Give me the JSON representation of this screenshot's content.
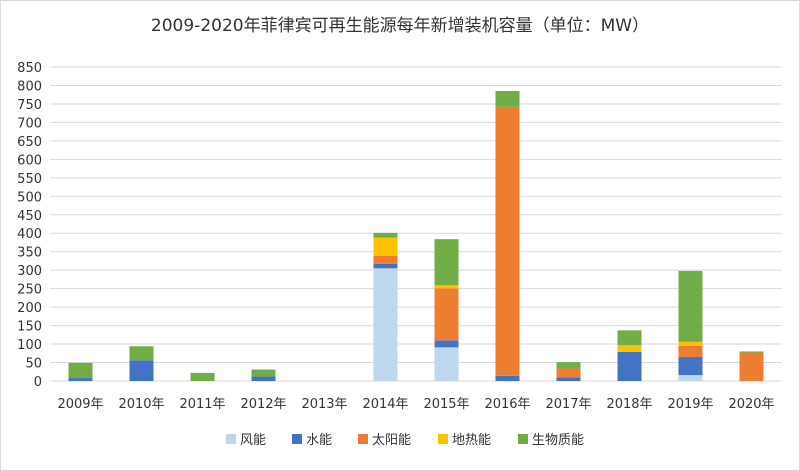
{
  "chart_data": {
    "type": "bar",
    "stacked": true,
    "title": "2009-2020年菲律宾可再生能源每年新增装机容量（单位：MW）",
    "xlabel": "",
    "ylabel": "",
    "ylim": [
      0,
      850
    ],
    "yticks": [
      "0",
      "50",
      "100",
      "150",
      "200",
      "250",
      "300",
      "350",
      "400",
      "450",
      "500",
      "550",
      "600",
      "650",
      "700",
      "750",
      "800",
      "850"
    ],
    "grid": true,
    "legend_position": "bottom",
    "categories": [
      "2009年",
      "2010年",
      "2011年",
      "2012年",
      "2013年",
      "2014年",
      "2015年",
      "2016年",
      "2017年",
      "2018年",
      "2019年",
      "2020年"
    ],
    "series": [
      {
        "name": "风能",
        "color": "#bdd7ee",
        "values": [
          0,
          0,
          0,
          0,
          0,
          305,
          91,
          0,
          0,
          0,
          16,
          0
        ]
      },
      {
        "name": "水能",
        "color": "#4472c4",
        "values": [
          8,
          56,
          0,
          12,
          0,
          12,
          19,
          14,
          10,
          79,
          49,
          0
        ]
      },
      {
        "name": "太阳能",
        "color": "#ed7d31",
        "values": [
          0,
          0,
          0,
          0,
          0,
          22,
          141,
          728,
          24,
          0,
          30,
          77
        ]
      },
      {
        "name": "地热能",
        "color": "#ffc000",
        "values": [
          0,
          0,
          0,
          0,
          0,
          49,
          8,
          0,
          0,
          18,
          11,
          0
        ]
      },
      {
        "name": "生物质能",
        "color": "#70ad47",
        "values": [
          41,
          38,
          22,
          19,
          0,
          13,
          125,
          43,
          17,
          40,
          192,
          3
        ]
      }
    ]
  }
}
